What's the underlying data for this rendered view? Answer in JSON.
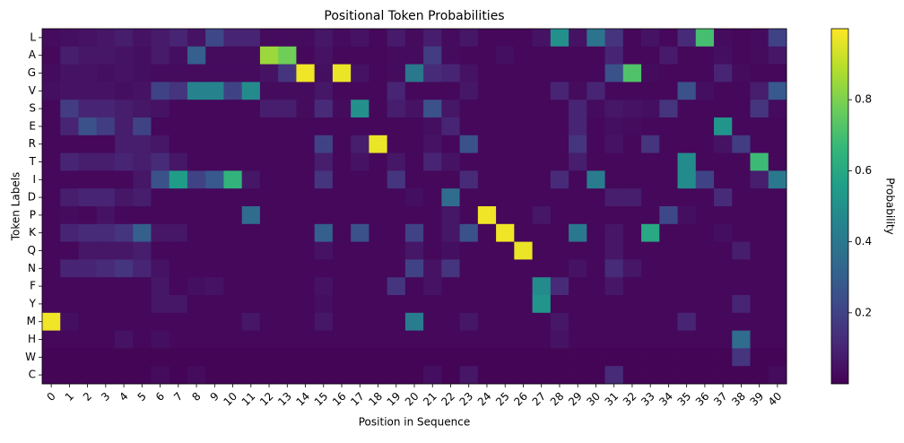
{
  "chart_data": {
    "type": "heatmap",
    "title": "Positional Token Probabilities",
    "x_label": "Position in Sequence",
    "y_label": "Token Labels",
    "colorbar_label": "Probability",
    "colormap": "viridis",
    "zlim": [
      0,
      1
    ],
    "zticks": [
      0.2,
      0.4,
      0.6,
      0.8
    ],
    "x": [
      0,
      1,
      2,
      3,
      4,
      5,
      6,
      7,
      8,
      9,
      10,
      11,
      12,
      13,
      14,
      15,
      16,
      17,
      18,
      19,
      20,
      21,
      22,
      23,
      24,
      25,
      26,
      27,
      28,
      29,
      30,
      31,
      32,
      33,
      34,
      35,
      36,
      37,
      38,
      39,
      40
    ],
    "y": [
      "L",
      "A",
      "G",
      "V",
      "S",
      "E",
      "R",
      "T",
      "I",
      "D",
      "P",
      "K",
      "Q",
      "N",
      "F",
      "Y",
      "M",
      "H",
      "W",
      "C"
    ],
    "values": [
      [
        0.03,
        0.04,
        0.05,
        0.06,
        0.08,
        0.05,
        0.07,
        0.1,
        0.05,
        0.22,
        0.1,
        0.1,
        0.03,
        0.03,
        0.03,
        0.06,
        0.03,
        0.05,
        0.02,
        0.07,
        0.03,
        0.08,
        0.03,
        0.06,
        0.02,
        0.02,
        0.02,
        0.05,
        0.5,
        0.05,
        0.38,
        0.15,
        0.02,
        0.05,
        0.02,
        0.12,
        0.7,
        0.03,
        0.02,
        0.03,
        0.2
      ],
      [
        0.02,
        0.08,
        0.06,
        0.06,
        0.05,
        0.04,
        0.07,
        0.04,
        0.3,
        0.03,
        0.03,
        0.03,
        0.85,
        0.78,
        0.02,
        0.05,
        0.02,
        0.02,
        0.02,
        0.03,
        0.03,
        0.18,
        0.03,
        0.02,
        0.02,
        0.04,
        0.02,
        0.02,
        0.02,
        0.02,
        0.02,
        0.1,
        0.02,
        0.02,
        0.07,
        0.02,
        0.02,
        0.04,
        0.02,
        0.03,
        0.06
      ],
      [
        0.03,
        0.05,
        0.05,
        0.04,
        0.05,
        0.04,
        0.03,
        0.03,
        0.03,
        0.03,
        0.03,
        0.03,
        0.05,
        0.15,
        0.98,
        0.04,
        0.97,
        0.05,
        0.02,
        0.03,
        0.4,
        0.12,
        0.1,
        0.05,
        0.02,
        0.02,
        0.02,
        0.02,
        0.02,
        0.02,
        0.02,
        0.25,
        0.72,
        0.03,
        0.02,
        0.02,
        0.02,
        0.1,
        0.03,
        0.02,
        0.02
      ],
      [
        0.04,
        0.05,
        0.05,
        0.05,
        0.04,
        0.05,
        0.2,
        0.15,
        0.45,
        0.45,
        0.2,
        0.48,
        0.03,
        0.03,
        0.03,
        0.06,
        0.02,
        0.02,
        0.02,
        0.1,
        0.02,
        0.02,
        0.02,
        0.06,
        0.02,
        0.02,
        0.02,
        0.02,
        0.1,
        0.03,
        0.1,
        0.02,
        0.02,
        0.02,
        0.02,
        0.25,
        0.04,
        0.02,
        0.02,
        0.08,
        0.28
      ],
      [
        0.02,
        0.18,
        0.1,
        0.1,
        0.08,
        0.06,
        0.05,
        0.02,
        0.02,
        0.02,
        0.02,
        0.02,
        0.08,
        0.08,
        0.03,
        0.12,
        0.03,
        0.5,
        0.02,
        0.08,
        0.05,
        0.25,
        0.06,
        0.02,
        0.02,
        0.02,
        0.02,
        0.02,
        0.02,
        0.1,
        0.03,
        0.06,
        0.05,
        0.04,
        0.15,
        0.02,
        0.02,
        0.02,
        0.02,
        0.15,
        0.03
      ],
      [
        0.02,
        0.1,
        0.25,
        0.18,
        0.08,
        0.2,
        0.02,
        0.02,
        0.02,
        0.02,
        0.02,
        0.02,
        0.02,
        0.02,
        0.02,
        0.02,
        0.02,
        0.02,
        0.02,
        0.02,
        0.02,
        0.04,
        0.1,
        0.02,
        0.02,
        0.02,
        0.02,
        0.02,
        0.02,
        0.1,
        0.02,
        0.04,
        0.03,
        0.02,
        0.02,
        0.02,
        0.02,
        0.52,
        0.02,
        0.02,
        0.02
      ],
      [
        0.02,
        0.02,
        0.02,
        0.02,
        0.08,
        0.08,
        0.06,
        0.02,
        0.02,
        0.02,
        0.02,
        0.02,
        0.02,
        0.02,
        0.02,
        0.2,
        0.02,
        0.08,
        0.97,
        0.02,
        0.02,
        0.05,
        0.02,
        0.25,
        0.02,
        0.02,
        0.02,
        0.02,
        0.02,
        0.15,
        0.02,
        0.05,
        0.02,
        0.15,
        0.02,
        0.02,
        0.02,
        0.05,
        0.18,
        0.02,
        0.02
      ],
      [
        0.02,
        0.1,
        0.08,
        0.08,
        0.1,
        0.08,
        0.12,
        0.06,
        0.02,
        0.02,
        0.02,
        0.02,
        0.02,
        0.02,
        0.02,
        0.08,
        0.02,
        0.05,
        0.02,
        0.06,
        0.02,
        0.1,
        0.05,
        0.02,
        0.02,
        0.02,
        0.02,
        0.02,
        0.02,
        0.08,
        0.02,
        0.02,
        0.02,
        0.02,
        0.02,
        0.48,
        0.02,
        0.02,
        0.02,
        0.68,
        0.02
      ],
      [
        0.02,
        0.02,
        0.02,
        0.02,
        0.02,
        0.06,
        0.25,
        0.55,
        0.2,
        0.28,
        0.65,
        0.06,
        0.02,
        0.02,
        0.02,
        0.15,
        0.02,
        0.02,
        0.02,
        0.15,
        0.02,
        0.02,
        0.02,
        0.12,
        0.02,
        0.02,
        0.02,
        0.02,
        0.12,
        0.02,
        0.42,
        0.02,
        0.02,
        0.02,
        0.02,
        0.48,
        0.2,
        0.02,
        0.02,
        0.08,
        0.4
      ],
      [
        0.02,
        0.08,
        0.1,
        0.1,
        0.06,
        0.08,
        0.02,
        0.02,
        0.02,
        0.02,
        0.02,
        0.02,
        0.02,
        0.02,
        0.02,
        0.02,
        0.02,
        0.02,
        0.02,
        0.02,
        0.04,
        0.02,
        0.35,
        0.02,
        0.02,
        0.02,
        0.02,
        0.02,
        0.02,
        0.02,
        0.02,
        0.08,
        0.08,
        0.02,
        0.02,
        0.02,
        0.02,
        0.12,
        0.02,
        0.02,
        0.02
      ],
      [
        0.02,
        0.03,
        0.02,
        0.05,
        0.02,
        0.02,
        0.02,
        0.02,
        0.02,
        0.02,
        0.02,
        0.35,
        0.02,
        0.02,
        0.02,
        0.02,
        0.02,
        0.02,
        0.02,
        0.02,
        0.02,
        0.02,
        0.06,
        0.02,
        0.98,
        0.02,
        0.02,
        0.06,
        0.02,
        0.02,
        0.02,
        0.02,
        0.02,
        0.02,
        0.22,
        0.04,
        0.02,
        0.02,
        0.02,
        0.02,
        0.02
      ],
      [
        0.02,
        0.1,
        0.12,
        0.12,
        0.15,
        0.3,
        0.06,
        0.06,
        0.02,
        0.02,
        0.02,
        0.02,
        0.02,
        0.02,
        0.02,
        0.3,
        0.02,
        0.25,
        0.02,
        0.02,
        0.2,
        0.02,
        0.06,
        0.25,
        0.02,
        0.98,
        0.02,
        0.02,
        0.02,
        0.4,
        0.02,
        0.06,
        0.02,
        0.6,
        0.02,
        0.02,
        0.02,
        0.04,
        0.02,
        0.02,
        0.02
      ],
      [
        0.02,
        0.02,
        0.06,
        0.06,
        0.06,
        0.08,
        0.02,
        0.02,
        0.02,
        0.02,
        0.02,
        0.02,
        0.02,
        0.02,
        0.02,
        0.05,
        0.02,
        0.02,
        0.02,
        0.02,
        0.06,
        0.02,
        0.04,
        0.02,
        0.02,
        0.02,
        0.97,
        0.02,
        0.02,
        0.02,
        0.02,
        0.06,
        0.02,
        0.02,
        0.02,
        0.02,
        0.02,
        0.02,
        0.08,
        0.02,
        0.02
      ],
      [
        0.02,
        0.1,
        0.1,
        0.12,
        0.15,
        0.1,
        0.05,
        0.02,
        0.02,
        0.02,
        0.02,
        0.02,
        0.02,
        0.02,
        0.02,
        0.02,
        0.02,
        0.02,
        0.02,
        0.02,
        0.2,
        0.05,
        0.15,
        0.02,
        0.02,
        0.02,
        0.02,
        0.02,
        0.02,
        0.05,
        0.02,
        0.12,
        0.06,
        0.02,
        0.02,
        0.02,
        0.02,
        0.02,
        0.02,
        0.02,
        0.02
      ],
      [
        0.02,
        0.02,
        0.02,
        0.02,
        0.02,
        0.02,
        0.06,
        0.02,
        0.04,
        0.05,
        0.02,
        0.02,
        0.02,
        0.02,
        0.02,
        0.05,
        0.02,
        0.02,
        0.02,
        0.15,
        0.02,
        0.05,
        0.02,
        0.02,
        0.02,
        0.02,
        0.02,
        0.48,
        0.12,
        0.02,
        0.02,
        0.06,
        0.02,
        0.02,
        0.02,
        0.02,
        0.02,
        0.02,
        0.02,
        0.02,
        0.02
      ],
      [
        0.02,
        0.02,
        0.02,
        0.02,
        0.02,
        0.02,
        0.06,
        0.06,
        0.02,
        0.02,
        0.02,
        0.02,
        0.02,
        0.02,
        0.02,
        0.04,
        0.02,
        0.02,
        0.02,
        0.02,
        0.02,
        0.02,
        0.02,
        0.02,
        0.02,
        0.02,
        0.02,
        0.52,
        0.02,
        0.02,
        0.02,
        0.02,
        0.02,
        0.02,
        0.02,
        0.02,
        0.02,
        0.02,
        0.1,
        0.02,
        0.02
      ],
      [
        0.98,
        0.04,
        0.02,
        0.02,
        0.02,
        0.02,
        0.02,
        0.02,
        0.02,
        0.02,
        0.02,
        0.06,
        0.02,
        0.02,
        0.02,
        0.06,
        0.02,
        0.02,
        0.02,
        0.02,
        0.42,
        0.02,
        0.02,
        0.06,
        0.02,
        0.02,
        0.02,
        0.02,
        0.06,
        0.02,
        0.02,
        0.02,
        0.02,
        0.02,
        0.02,
        0.1,
        0.02,
        0.02,
        0.02,
        0.02,
        0.02
      ],
      [
        0.02,
        0.02,
        0.02,
        0.02,
        0.05,
        0.02,
        0.04,
        0.02,
        0.02,
        0.02,
        0.02,
        0.02,
        0.02,
        0.02,
        0.02,
        0.02,
        0.02,
        0.02,
        0.02,
        0.02,
        0.02,
        0.02,
        0.02,
        0.02,
        0.02,
        0.02,
        0.02,
        0.02,
        0.05,
        0.02,
        0.02,
        0.02,
        0.02,
        0.02,
        0.02,
        0.02,
        0.02,
        0.02,
        0.35,
        0.02,
        0.02
      ],
      [
        0.01,
        0.01,
        0.01,
        0.01,
        0.01,
        0.01,
        0.01,
        0.01,
        0.01,
        0.01,
        0.01,
        0.01,
        0.01,
        0.01,
        0.01,
        0.01,
        0.01,
        0.01,
        0.01,
        0.01,
        0.01,
        0.01,
        0.01,
        0.01,
        0.01,
        0.01,
        0.01,
        0.01,
        0.01,
        0.01,
        0.01,
        0.01,
        0.01,
        0.01,
        0.01,
        0.01,
        0.01,
        0.01,
        0.15,
        0.01,
        0.01
      ],
      [
        0.01,
        0.01,
        0.01,
        0.01,
        0.01,
        0.01,
        0.03,
        0.01,
        0.03,
        0.01,
        0.01,
        0.01,
        0.01,
        0.01,
        0.01,
        0.01,
        0.01,
        0.01,
        0.01,
        0.01,
        0.01,
        0.04,
        0.01,
        0.06,
        0.01,
        0.01,
        0.01,
        0.01,
        0.01,
        0.01,
        0.01,
        0.12,
        0.01,
        0.01,
        0.01,
        0.01,
        0.01,
        0.01,
        0.01,
        0.01,
        0.03
      ]
    ]
  }
}
